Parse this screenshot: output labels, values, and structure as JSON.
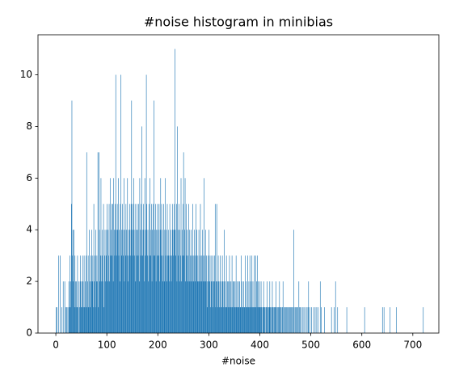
{
  "chart_data": {
    "type": "histogram",
    "title": "#noise histogram in minibias",
    "xlabel": "#noise",
    "color": "#1f77b4",
    "xlim": [
      -35,
      751
    ],
    "ylim": [
      0,
      11.55
    ],
    "xticks": [
      0,
      100,
      200,
      300,
      400,
      500,
      600,
      700
    ],
    "yticks": [
      0,
      2,
      4,
      6,
      8,
      10
    ],
    "bins": [
      0,
      1,
      2,
      3,
      4,
      5,
      6,
      7,
      8,
      9,
      10,
      11,
      12,
      13,
      14,
      15,
      16,
      17,
      18,
      19,
      20,
      21,
      22,
      23,
      24,
      25,
      26,
      27,
      28,
      29,
      30,
      31,
      32,
      33,
      34,
      35,
      36,
      37,
      38,
      39,
      40,
      41,
      42,
      43,
      44,
      45,
      46,
      47,
      48,
      49,
      50,
      51,
      52,
      53,
      54,
      55,
      56,
      57,
      58,
      59,
      60,
      61,
      62,
      63,
      64,
      65,
      66,
      67,
      68,
      69,
      70,
      71,
      72,
      73,
      74,
      75,
      76,
      77,
      78,
      79,
      80,
      81,
      82,
      83,
      84,
      85,
      86,
      87,
      88,
      89,
      90,
      91,
      92,
      93,
      94,
      95,
      96,
      97,
      98,
      99,
      100,
      101,
      102,
      103,
      104,
      105,
      106,
      107,
      108,
      109,
      110,
      111,
      112,
      113,
      114,
      115,
      116,
      117,
      118,
      119,
      120,
      121,
      122,
      123,
      124,
      125,
      126,
      127,
      128,
      129,
      130,
      131,
      132,
      133,
      134,
      135,
      136,
      137,
      138,
      139,
      140,
      141,
      142,
      143,
      144,
      145,
      146,
      147,
      148,
      149,
      150,
      151,
      152,
      153,
      154,
      155,
      156,
      157,
      158,
      159,
      160,
      161,
      162,
      163,
      164,
      165,
      166,
      167,
      168,
      169,
      170,
      171,
      172,
      173,
      174,
      175,
      176,
      177,
      178,
      179,
      180,
      181,
      182,
      183,
      184,
      185,
      186,
      187,
      188,
      189,
      190,
      191,
      192,
      193,
      194,
      195,
      196,
      197,
      198,
      199,
      200,
      201,
      202,
      203,
      204,
      205,
      206,
      207,
      208,
      209,
      210,
      211,
      212,
      213,
      214,
      215,
      216,
      217,
      218,
      219,
      220,
      221,
      222,
      223,
      224,
      225,
      226,
      227,
      228,
      229,
      230,
      231,
      232,
      233,
      234,
      235,
      236,
      237,
      238,
      239,
      240,
      241,
      242,
      243,
      244,
      245,
      246,
      247,
      248,
      249,
      250,
      251,
      252,
      253,
      254,
      255,
      256,
      257,
      258,
      259,
      260,
      261,
      262,
      263,
      264,
      265,
      266,
      267,
      268,
      269,
      270,
      271,
      272,
      273,
      274,
      275,
      276,
      277,
      278,
      279,
      280,
      281,
      282,
      283,
      284,
      285,
      286,
      287,
      288,
      289,
      290,
      291,
      292,
      293,
      294,
      295,
      296,
      297,
      298,
      299,
      300,
      301,
      302,
      303,
      304,
      305,
      306,
      307,
      308,
      309,
      310,
      311,
      312,
      313,
      314,
      315,
      316,
      317,
      318,
      319,
      320,
      321,
      322,
      323,
      324,
      325,
      326,
      327,
      328,
      329,
      330,
      331,
      332,
      333,
      334,
      335,
      336,
      337,
      338,
      339,
      340,
      341,
      342,
      343,
      344,
      345,
      346,
      347,
      348,
      349,
      350,
      351,
      352,
      353,
      354,
      355,
      356,
      357,
      358,
      359,
      360,
      361,
      362,
      363,
      364,
      365,
      366,
      367,
      368,
      369,
      370,
      371,
      372,
      373,
      374,
      375,
      376,
      377,
      378,
      379,
      380,
      381,
      382,
      383,
      384,
      385,
      386,
      387,
      388,
      389,
      390,
      391,
      392,
      393,
      394,
      395,
      396,
      397,
      398,
      399,
      400,
      401,
      402,
      403,
      404,
      405,
      406,
      407,
      408,
      409,
      410,
      411,
      412,
      413,
      414,
      415,
      416,
      417,
      418,
      419,
      420,
      421,
      422,
      423,
      424,
      425,
      426,
      427,
      428,
      429,
      430,
      431,
      432,
      433,
      434,
      435,
      436,
      437,
      438,
      439,
      440,
      441,
      442,
      443,
      444,
      445,
      446,
      447,
      448,
      449,
      450,
      451,
      452,
      453,
      454,
      455,
      456,
      457,
      458,
      459,
      460,
      461,
      462,
      463,
      464,
      465,
      466,
      467,
      468,
      469,
      470,
      471,
      472,
      473,
      474,
      475,
      476,
      477,
      478,
      479,
      480,
      481,
      482,
      483,
      484,
      485,
      486,
      487,
      488,
      489,
      490,
      491,
      492,
      493,
      494,
      495,
      496,
      497,
      498,
      499,
      500,
      501,
      502,
      503,
      504,
      505,
      506,
      507,
      508,
      509,
      510,
      511,
      512,
      513,
      514,
      515,
      516,
      517,
      518,
      519,
      520,
      521,
      522,
      523,
      524,
      525,
      526,
      527,
      528,
      529,
      530,
      531,
      532,
      533,
      534,
      535,
      536,
      537,
      538,
      539,
      540,
      541,
      542,
      543,
      544,
      545,
      546,
      547,
      548,
      549,
      550,
      551,
      552,
      553,
      554,
      555,
      556,
      557,
      558,
      559,
      560,
      561,
      562,
      563,
      564,
      565,
      566,
      567,
      568,
      569,
      570,
      571,
      572,
      573,
      574,
      575,
      576,
      577,
      578,
      579,
      580,
      581,
      582,
      583,
      584,
      585,
      586,
      587,
      588,
      589,
      590,
      591,
      592,
      593,
      594,
      595,
      596,
      597,
      598,
      599,
      600,
      601,
      602,
      603,
      604,
      605,
      606,
      607,
      608,
      609,
      610,
      611,
      612,
      613,
      614,
      615,
      616,
      617,
      618,
      619,
      620,
      621,
      622,
      623,
      624,
      625,
      626,
      627,
      628,
      629,
      630,
      631,
      632,
      633,
      634,
      635,
      636,
      637,
      638,
      639,
      640,
      641,
      642,
      643,
      644,
      645,
      646,
      647,
      648,
      649,
      650,
      651,
      652,
      653,
      654,
      655,
      656,
      657,
      658,
      659,
      660,
      661,
      662,
      663,
      664,
      665,
      666,
      667,
      668,
      669,
      670,
      671,
      672,
      673,
      674,
      675,
      676,
      677,
      678,
      679,
      680,
      681,
      682,
      683,
      684,
      685,
      686,
      687,
      688,
      689,
      690,
      691,
      692,
      693,
      694,
      695,
      696,
      697,
      698,
      699,
      700,
      701,
      702,
      703,
      704,
      705,
      706,
      707,
      708,
      709,
      710,
      711,
      712,
      713,
      714,
      715,
      716,
      717,
      718,
      719,
      720,
      721,
      722
    ],
    "counts": [
      1,
      0,
      1,
      0,
      0,
      3,
      0,
      0,
      3,
      0,
      0,
      1,
      0,
      0,
      2,
      0,
      0,
      2,
      0,
      1,
      0,
      1,
      0,
      1,
      0,
      2,
      1,
      3,
      1,
      2,
      5,
      9,
      3,
      4,
      2,
      4,
      1,
      3,
      2,
      1,
      2,
      1,
      3,
      1,
      2,
      0,
      1,
      2,
      3,
      1,
      2,
      1,
      3,
      2,
      1,
      3,
      1,
      2,
      1,
      3,
      7,
      1,
      2,
      3,
      1,
      4,
      2,
      1,
      3,
      2,
      4,
      2,
      3,
      1,
      5,
      2,
      3,
      1,
      4,
      2,
      3,
      2,
      7,
      1,
      7,
      4,
      2,
      3,
      6,
      2,
      3,
      4,
      2,
      5,
      1,
      3,
      4,
      2,
      3,
      4,
      5,
      2,
      4,
      3,
      5,
      2,
      6,
      3,
      4,
      5,
      3,
      5,
      2,
      6,
      4,
      3,
      5,
      10,
      4,
      3,
      5,
      4,
      6,
      3,
      4,
      2,
      5,
      10,
      3,
      4,
      5,
      4,
      3,
      6,
      2,
      4,
      3,
      5,
      4,
      3,
      6,
      2,
      4,
      3,
      5,
      4,
      3,
      5,
      9,
      4,
      3,
      5,
      6,
      4,
      3,
      5,
      2,
      4,
      3,
      5,
      4,
      3,
      5,
      2,
      6,
      4,
      3,
      5,
      8,
      4,
      3,
      5,
      4,
      2,
      6,
      3,
      4,
      10,
      5,
      3,
      4,
      2,
      5,
      3,
      6,
      4,
      3,
      5,
      2,
      4,
      5,
      3,
      9,
      4,
      3,
      5,
      2,
      4,
      3,
      5,
      4,
      3,
      5,
      2,
      4,
      6,
      3,
      5,
      4,
      2,
      3,
      5,
      4,
      2,
      6,
      3,
      4,
      2,
      5,
      3,
      4,
      3,
      2,
      5,
      3,
      4,
      2,
      3,
      5,
      4,
      3,
      4,
      5,
      11,
      4,
      3,
      5,
      2,
      8,
      4,
      3,
      5,
      2,
      4,
      3,
      6,
      2,
      4,
      3,
      5,
      7,
      3,
      4,
      6,
      2,
      5,
      3,
      4,
      2,
      3,
      5,
      2,
      4,
      3,
      2,
      4,
      3,
      2,
      5,
      3,
      2,
      4,
      3,
      2,
      5,
      3,
      4,
      2,
      3,
      2,
      4,
      2,
      3,
      5,
      2,
      3,
      2,
      4,
      3,
      2,
      6,
      3,
      2,
      4,
      2,
      3,
      1,
      2,
      3,
      2,
      4,
      2,
      3,
      1,
      2,
      3,
      2,
      1,
      3,
      2,
      2,
      3,
      5,
      1,
      2,
      5,
      2,
      1,
      3,
      2,
      1,
      2,
      3,
      1,
      2,
      1,
      3,
      2,
      1,
      2,
      4,
      1,
      2,
      1,
      3,
      1,
      2,
      1,
      2,
      1,
      3,
      2,
      1,
      2,
      1,
      3,
      1,
      2,
      1,
      2,
      1,
      2,
      1,
      3,
      1,
      2,
      1,
      1,
      2,
      1,
      2,
      1,
      1,
      3,
      1,
      2,
      1,
      1,
      2,
      1,
      1,
      3,
      1,
      2,
      1,
      1,
      3,
      1,
      2,
      1,
      3,
      1,
      2,
      1,
      3,
      1,
      2,
      1,
      1,
      3,
      1,
      3,
      1,
      2,
      1,
      3,
      2,
      1,
      1,
      2,
      1,
      1,
      2,
      1,
      0,
      1,
      1,
      2,
      1,
      1,
      1,
      0,
      1,
      1,
      2,
      1,
      0,
      1,
      1,
      2,
      1,
      1,
      0,
      1,
      2,
      1,
      1,
      0,
      1,
      1,
      1,
      2,
      0,
      1,
      1,
      0,
      1,
      1,
      2,
      0,
      1,
      1,
      0,
      1,
      1,
      2,
      0,
      1,
      0,
      1,
      1,
      0,
      1,
      1,
      0,
      1,
      0,
      1,
      1,
      0,
      1,
      1,
      0,
      1,
      0,
      1,
      4,
      1,
      0,
      1,
      0,
      1,
      1,
      0,
      1,
      0,
      2,
      1,
      0,
      1,
      0,
      1,
      0,
      0,
      1,
      0,
      1,
      0,
      0,
      1,
      0,
      0,
      1,
      0,
      1,
      2,
      0,
      0,
      1,
      0,
      0,
      1,
      0,
      0,
      0,
      1,
      0,
      0,
      1,
      0,
      0,
      1,
      0,
      0,
      1,
      0,
      0,
      0,
      2,
      0,
      1,
      0,
      0,
      0,
      0,
      0,
      1,
      0,
      0,
      0,
      0,
      0,
      0,
      0,
      0,
      0,
      0,
      0,
      0,
      0,
      1,
      0,
      0,
      0,
      0,
      1,
      0,
      0,
      2,
      0,
      0,
      0,
      1,
      0,
      0,
      0,
      0,
      0,
      0,
      0,
      0,
      0,
      0,
      0,
      0,
      0,
      0,
      0,
      0,
      0,
      1,
      0,
      0,
      0,
      0,
      0,
      0,
      0,
      0,
      0,
      0,
      0,
      0,
      0,
      0,
      0,
      0,
      0,
      0,
      0,
      0,
      0,
      0,
      0,
      0,
      0,
      0,
      0,
      0,
      0,
      0,
      0,
      0,
      0,
      0,
      1,
      0,
      0,
      0,
      0,
      0,
      0,
      0,
      0,
      0,
      0,
      0,
      0,
      0,
      0,
      0,
      0,
      0,
      0,
      0,
      0,
      0,
      0,
      0,
      0,
      0,
      0,
      0,
      0,
      0,
      0,
      0,
      0,
      0,
      0,
      1,
      0,
      0,
      1,
      0,
      0,
      0,
      0,
      0,
      0,
      0,
      0,
      0,
      0,
      0,
      1,
      0,
      0,
      0,
      0,
      0,
      0,
      0,
      0,
      0,
      0,
      0,
      1,
      0,
      0,
      0,
      0,
      0,
      0,
      0,
      0,
      0,
      0,
      0,
      0,
      0,
      0,
      0,
      0,
      0,
      0,
      0,
      0,
      0,
      0,
      0,
      0,
      0,
      0,
      0,
      0,
      0,
      0,
      0,
      0,
      0,
      0,
      0,
      0,
      0,
      0,
      0,
      0,
      0,
      0,
      0,
      0,
      0,
      0,
      0,
      0,
      0,
      0,
      0,
      0,
      1,
      0
    ]
  }
}
